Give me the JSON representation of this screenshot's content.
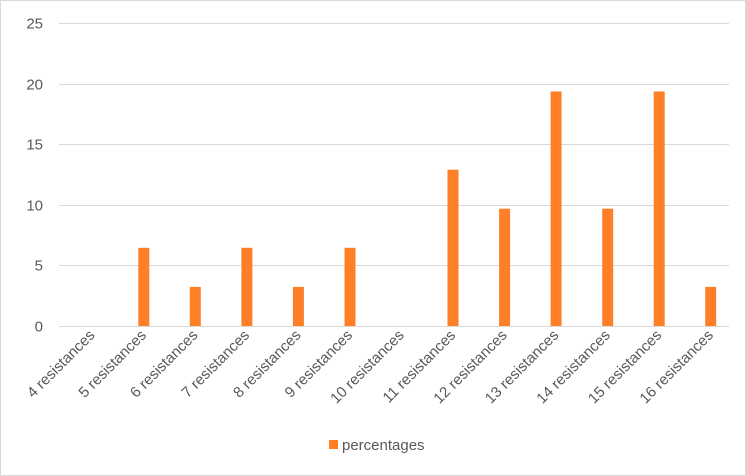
{
  "chart_data": {
    "type": "bar",
    "title": "",
    "xlabel": "",
    "ylabel": "",
    "categories": [
      "4 resistances",
      "5 resistances",
      "6 resistances",
      "7 resistances",
      "8 resistances",
      "9 resistances",
      "10 resistances",
      "11 resistances",
      "12 resistances",
      "13 resistances",
      "14 resistances",
      "15 resistances",
      "16 resistances"
    ],
    "series": [
      {
        "name": "percentages",
        "color": "#ff7f27",
        "values": [
          0,
          6.45,
          3.23,
          6.45,
          3.23,
          6.45,
          0,
          12.9,
          9.68,
          19.35,
          9.68,
          19.35,
          3.23
        ]
      }
    ],
    "ylim": [
      0,
      25
    ],
    "yticks": [
      0,
      5,
      10,
      15,
      20,
      25
    ],
    "grid": true,
    "legend_position": "bottom"
  }
}
